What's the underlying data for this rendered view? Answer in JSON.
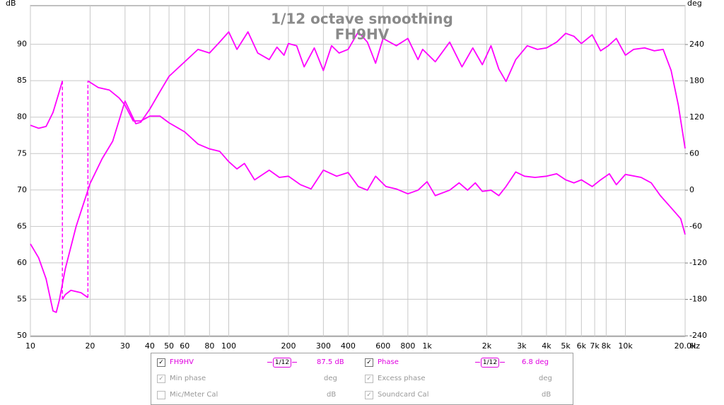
{
  "chart_data": {
    "type": "line",
    "title": "1/12 octave smoothing",
    "subtitle": "FH9HV",
    "y_unit": "dB",
    "y2_unit": "deg",
    "x_unit": "Hz",
    "xlog": true,
    "grid": true,
    "xlim": [
      10,
      20000
    ],
    "xticks": [
      10,
      20,
      30,
      40,
      50,
      60,
      80,
      100,
      200,
      300,
      400,
      600,
      800,
      {
        "value": 1000,
        "label": "1k"
      },
      {
        "value": 2000,
        "label": "2k"
      },
      {
        "value": 3000,
        "label": "3k"
      },
      {
        "value": 4000,
        "label": "4k"
      },
      {
        "value": 5000,
        "label": "5k"
      },
      {
        "value": 6000,
        "label": "6k"
      },
      {
        "value": 7000,
        "label": "7k"
      },
      {
        "value": 8000,
        "label": "8k"
      },
      {
        "value": 10000,
        "label": "10k"
      },
      {
        "value": 20000,
        "label": "20.0k"
      }
    ],
    "ylim": [
      49.9,
      95.3
    ],
    "yticks": [
      50,
      55,
      60,
      65,
      70,
      75,
      80,
      85,
      90
    ],
    "y2lim": [
      -241,
      304
    ],
    "y2ticks": [
      -240,
      -180,
      -120,
      -60,
      0,
      60,
      120,
      180,
      240
    ],
    "series": [
      {
        "name": "FH9HV",
        "color": "#ff00ff",
        "axis": "y",
        "x": [
          10,
          11,
          12,
          13,
          13.5,
          14,
          15,
          17,
          20,
          23,
          26,
          30,
          32,
          34,
          36,
          40,
          45,
          50,
          60,
          70,
          80,
          90,
          100,
          110,
          125,
          140,
          160,
          175,
          190,
          200,
          220,
          240,
          270,
          300,
          330,
          360,
          400,
          450,
          500,
          550,
          600,
          700,
          800,
          900,
          950,
          1100,
          1300,
          1500,
          1700,
          1900,
          2100,
          2300,
          2500,
          2800,
          3200,
          3600,
          4000,
          4500,
          5000,
          5500,
          6000,
          6800,
          7500,
          8200,
          9000,
          10000,
          11000,
          12500,
          14000,
          15500,
          17000,
          18500,
          20000
        ],
        "values": [
          62.6,
          60.7,
          57.8,
          53.4,
          53.2,
          54.9,
          59.2,
          65,
          70.9,
          74.3,
          76.7,
          82.2,
          80.6,
          79.1,
          79.3,
          81.1,
          83.5,
          85.6,
          87.6,
          89.3,
          88.8,
          90.3,
          91.7,
          89.3,
          91.7,
          88.8,
          87.9,
          89.6,
          88.5,
          90.1,
          89.8,
          86.9,
          89.5,
          86.4,
          89.8,
          88.8,
          89.3,
          91.7,
          90.3,
          87.4,
          90.8,
          89.8,
          90.8,
          87.9,
          89.3,
          87.6,
          90.3,
          86.9,
          89.5,
          87.2,
          89.8,
          86.6,
          84.9,
          87.9,
          89.8,
          89.3,
          89.5,
          90.3,
          91.5,
          91.1,
          90.1,
          91.3,
          89.1,
          89.8,
          90.8,
          88.5,
          89.3,
          89.5,
          89.1,
          89.3,
          86.4,
          81.6,
          75.7
        ]
      },
      {
        "name": "Phase",
        "color": "#ff00ff",
        "axis": "y2",
        "x": [
          10,
          11,
          12,
          13,
          14,
          14.5,
          14.5,
          15,
          16,
          18,
          19.5,
          19.5,
          22,
          25,
          28,
          30,
          33,
          36,
          40,
          45,
          50,
          60,
          70,
          80,
          90,
          100,
          110,
          120,
          135,
          160,
          180,
          200,
          230,
          260,
          300,
          350,
          400,
          450,
          500,
          550,
          620,
          700,
          800,
          900,
          1000,
          1100,
          1300,
          1450,
          1600,
          1750,
          1900,
          2100,
          2300,
          2500,
          2800,
          3100,
          3500,
          4000,
          4500,
          5000,
          5500,
          6000,
          6800,
          7500,
          8300,
          9000,
          10000,
          12000,
          13500,
          15000,
          17000,
          19000,
          20000
        ],
        "values": [
          107,
          102,
          105,
          128,
          163,
          180,
          -180,
          -172,
          -165,
          -169,
          -177,
          180,
          169,
          165,
          152,
          140,
          114,
          114,
          122,
          122,
          111,
          96,
          76,
          68,
          64,
          47,
          35,
          44,
          17,
          33,
          21,
          23,
          9,
          2,
          33,
          23,
          29,
          6,
          0,
          23,
          6,
          2,
          -6,
          0,
          14,
          -9,
          0,
          12,
          0,
          12,
          -2,
          0,
          -9,
          6,
          30,
          23,
          21,
          23,
          27,
          17,
          12,
          17,
          6,
          17,
          27,
          9,
          26,
          21,
          12,
          -9,
          -29,
          -47,
          -73
        ]
      }
    ]
  },
  "legend_panel": {
    "smoothing_icon": "1/12",
    "spl_readout": "87.5 dB",
    "phase_readout": "6.8 deg",
    "rows": [
      {
        "left": "Min phase",
        "left_unit": "deg",
        "right": "Excess phase",
        "right_unit": "deg"
      },
      {
        "left": "Mic/Meter Cal",
        "left_unit": "dB",
        "right": "Soundcard Cal",
        "right_unit": "dB"
      }
    ]
  }
}
